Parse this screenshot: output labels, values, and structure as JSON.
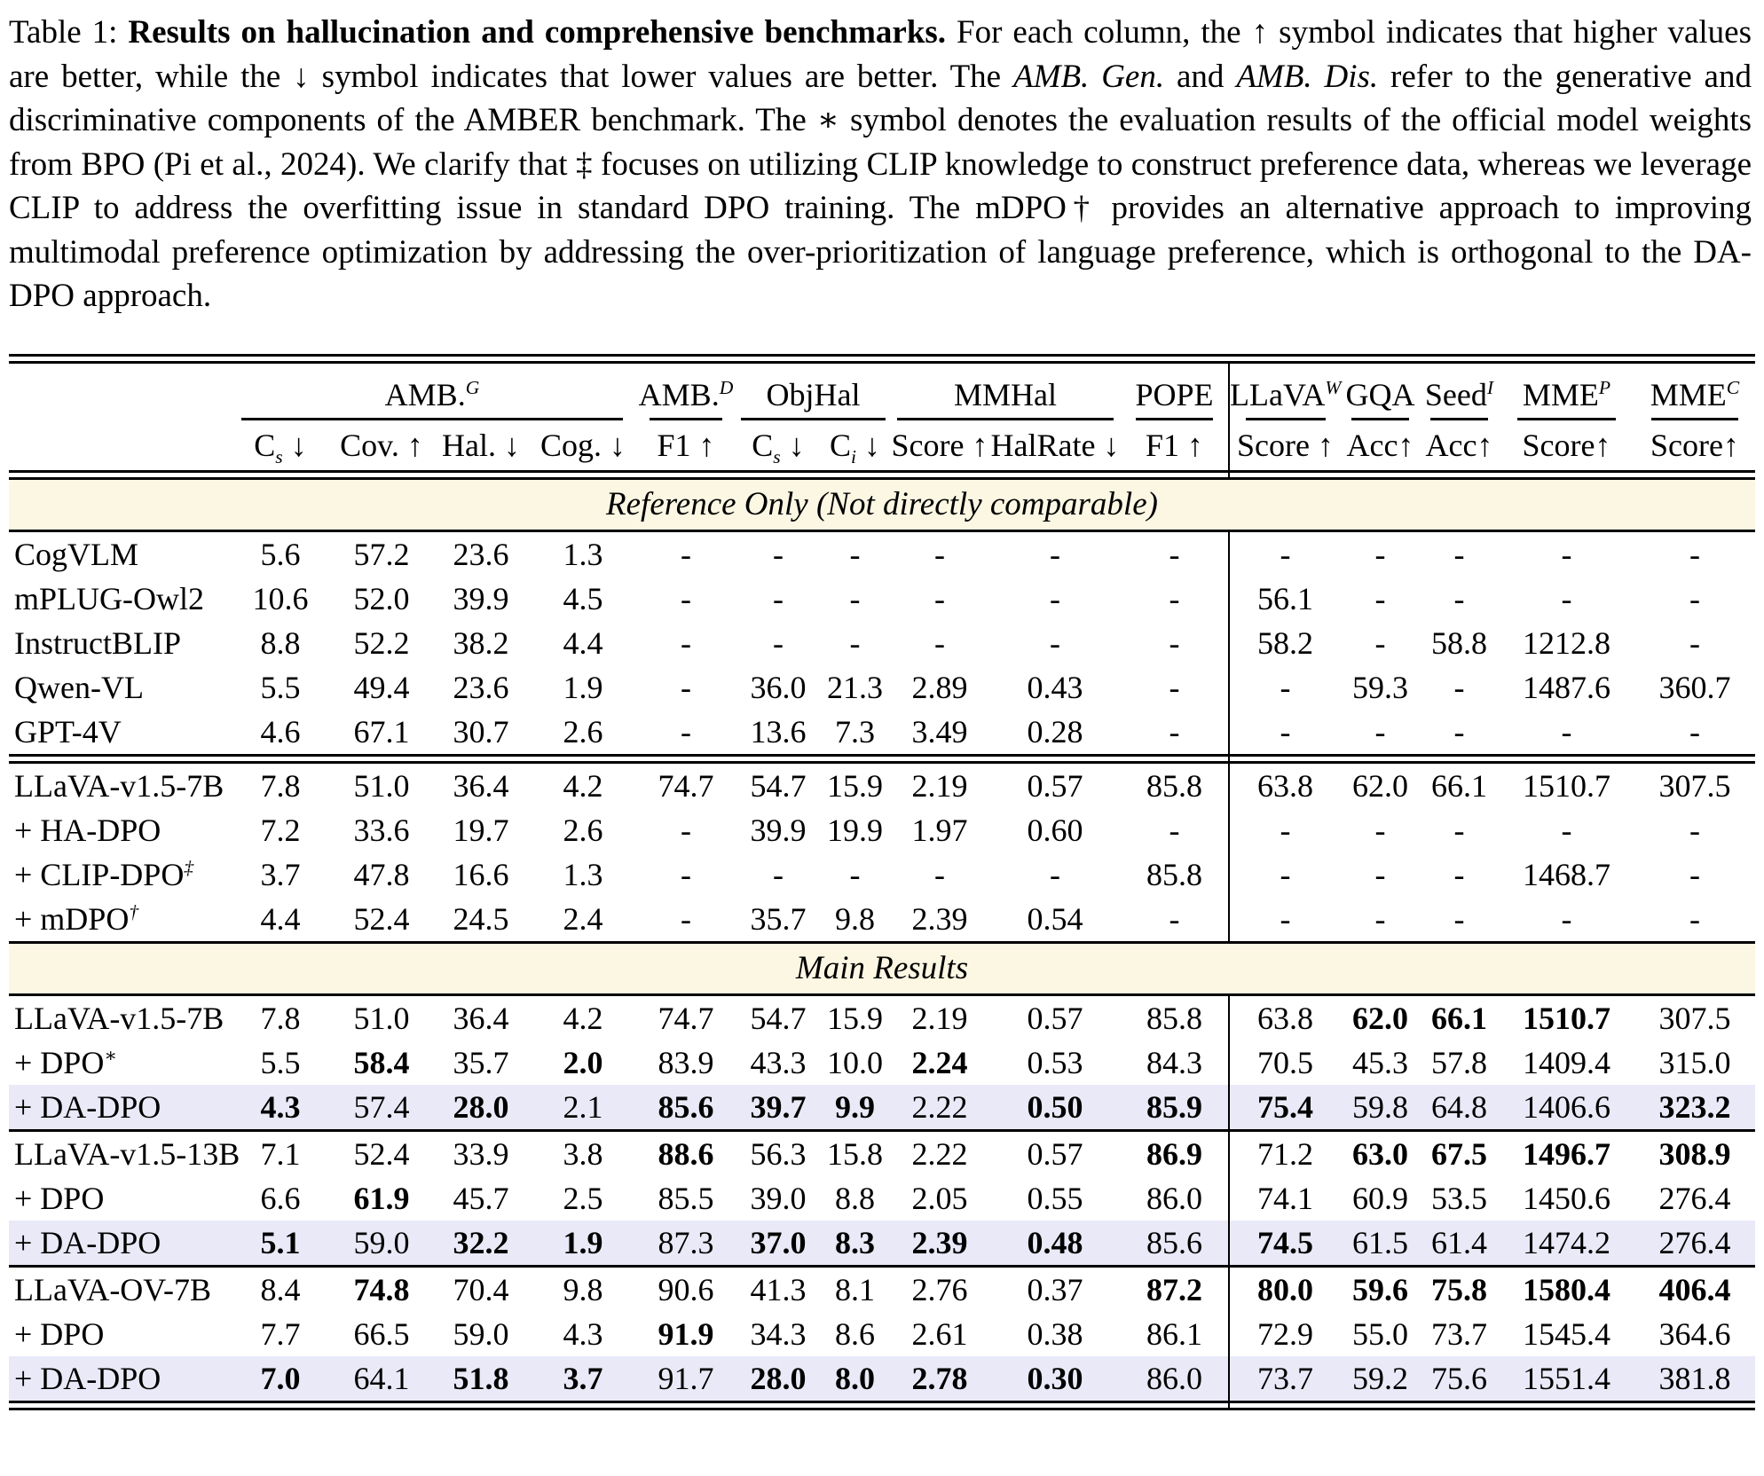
{
  "colors": {
    "banner_bg": "#FBF7E3",
    "highlight_bg": "#E9E9F8",
    "rule": "#000000"
  },
  "caption": {
    "prefix": "Table 1: ",
    "title_bold": "Results on hallucination and comprehensive benchmarks.",
    "seg1": " For each column, the ↑ symbol indicates that higher values are better, while the ↓ symbol indicates that lower values are better. The ",
    "amb_gen": "AMB. Gen.",
    "seg2": " and ",
    "amb_dis": "AMB. Dis.",
    "seg3": " refer to the generative and discriminative components of the AMBER benchmark. The ∗ symbol denotes the evaluation results of the official model weights from BPO (Pi et al., 2024). We clarify that ‡ focuses on utilizing CLIP knowledge to construct preference data, whereas we leverage CLIP to address the overfitting issue in standard DPO training. The mDPO† provides an alternative approach to improving multimodal preference optimization by addressing the over-prioritization of language preference, which is orthogonal to the DA-DPO approach."
  },
  "table": {
    "groups": [
      {
        "label": "",
        "span": 1
      },
      {
        "label": "AMB.^G",
        "span": 4
      },
      {
        "label": "AMB.^D",
        "span": 1
      },
      {
        "label": "ObjHal",
        "span": 2
      },
      {
        "label": "MMHal",
        "span": 2
      },
      {
        "label": "POPE",
        "span": 1
      },
      {
        "label": "LLaVA^W",
        "span": 1,
        "vline": true
      },
      {
        "label": "GQA",
        "span": 1
      },
      {
        "label": "Seed^I",
        "span": 1
      },
      {
        "label": "MME^P",
        "span": 1
      },
      {
        "label": "MME^C",
        "span": 1
      }
    ],
    "subheaders": [
      "",
      "C_s ↓",
      "Cov. ↑",
      "Hal. ↓",
      "Cog. ↓",
      "F1 ↑",
      "C_s ↓",
      "C_i ↓",
      "Score ↑",
      "HalRate ↓",
      "F1 ↑",
      "Score ↑",
      "Acc↑",
      "Acc↑",
      "Score↑",
      "Score↑"
    ],
    "sections": [
      {
        "rule_before": "none",
        "banner": "Reference Only (Not directly comparable)",
        "rows": [
          {
            "model": "CogVLM",
            "highlight": false,
            "values": [
              "5.6",
              "57.2",
              "23.6",
              "1.3",
              "-",
              "-",
              "-",
              "-",
              "-",
              "-",
              "-",
              "-",
              "-",
              "-",
              "-"
            ]
          },
          {
            "model": "mPLUG-Owl2",
            "highlight": false,
            "values": [
              "10.6",
              "52.0",
              "39.9",
              "4.5",
              "-",
              "-",
              "-",
              "-",
              "-",
              "-",
              "56.1",
              "-",
              "-",
              "-",
              "-"
            ]
          },
          {
            "model": "InstructBLIP",
            "highlight": false,
            "values": [
              "8.8",
              "52.2",
              "38.2",
              "4.4",
              "-",
              "-",
              "-",
              "-",
              "-",
              "-",
              "58.2",
              "-",
              "58.8",
              "1212.8",
              "-"
            ]
          },
          {
            "model": "Qwen-VL",
            "highlight": false,
            "values": [
              "5.5",
              "49.4",
              "23.6",
              "1.9",
              "-",
              "36.0",
              "21.3",
              "2.89",
              "0.43",
              "-",
              "-",
              "59.3",
              "-",
              "1487.6",
              "360.7"
            ]
          },
          {
            "model": "GPT-4V",
            "highlight": false,
            "values": [
              "4.6",
              "67.1",
              "30.7",
              "2.6",
              "-",
              "13.6",
              "7.3",
              "3.49",
              "0.28",
              "-",
              "-",
              "-",
              "-",
              "-",
              "-"
            ]
          }
        ]
      },
      {
        "rule_before": "double",
        "banner": null,
        "rows": [
          {
            "model": "LLaVA-v1.5-7B",
            "highlight": false,
            "values": [
              "7.8",
              "51.0",
              "36.4",
              "4.2",
              "74.7",
              "54.7",
              "15.9",
              "2.19",
              "0.57",
              "85.8",
              "63.8",
              "62.0",
              "66.1",
              "1510.7",
              "307.5"
            ]
          },
          {
            "model": "+ HA-DPO",
            "highlight": false,
            "values": [
              "7.2",
              "33.6",
              "19.7",
              "2.6",
              "-",
              "39.9",
              "19.9",
              "1.97",
              "0.60",
              "-",
              "-",
              "-",
              "-",
              "-",
              "-"
            ]
          },
          {
            "model": "+ CLIP-DPO^‡",
            "highlight": false,
            "values": [
              "3.7",
              "47.8",
              "16.6",
              "1.3",
              "-",
              "-",
              "-",
              "-",
              "-",
              "85.8",
              "-",
              "-",
              "-",
              "1468.7",
              "-"
            ]
          },
          {
            "model": "+ mDPO^†",
            "highlight": false,
            "values": [
              "4.4",
              "52.4",
              "24.5",
              "2.4",
              "-",
              "35.7",
              "9.8",
              "2.39",
              "0.54",
              "-",
              "-",
              "-",
              "-",
              "-",
              "-"
            ]
          }
        ]
      },
      {
        "rule_before": "single",
        "banner": "Main Results",
        "rows": [
          {
            "model": "LLaVA-v1.5-7B",
            "highlight": false,
            "values": [
              "7.8",
              "51.0",
              "36.4",
              "4.2",
              "74.7",
              "54.7",
              "15.9",
              "2.19",
              "0.57",
              "85.8",
              "63.8",
              "*62.0",
              "*66.1",
              "*1510.7",
              "307.5"
            ]
          },
          {
            "model": "+ DPO^∗",
            "highlight": false,
            "values": [
              "5.5",
              "*58.4",
              "35.7",
              "*2.0",
              "83.9",
              "43.3",
              "10.0",
              "*2.24",
              "0.53",
              "84.3",
              "70.5",
              "45.3",
              "57.8",
              "1409.4",
              "315.0"
            ]
          },
          {
            "model": "+ DA-DPO",
            "highlight": true,
            "values": [
              "*4.3",
              "57.4",
              "*28.0",
              "2.1",
              "*85.6",
              "*39.7",
              "*9.9",
              "2.22",
              "*0.50",
              "*85.9",
              "*75.4",
              "59.8",
              "64.8",
              "1406.6",
              "*323.2"
            ]
          }
        ]
      },
      {
        "rule_before": "single",
        "banner": null,
        "rows": [
          {
            "model": "LLaVA-v1.5-13B",
            "highlight": false,
            "values": [
              "7.1",
              "52.4",
              "33.9",
              "3.8",
              "*88.6",
              "56.3",
              "15.8",
              "2.22",
              "0.57",
              "*86.9",
              "71.2",
              "*63.0",
              "*67.5",
              "*1496.7",
              "*308.9"
            ]
          },
          {
            "model": "+ DPO",
            "highlight": false,
            "values": [
              "6.6",
              "*61.9",
              "45.7",
              "2.5",
              "85.5",
              "39.0",
              "8.8",
              "2.05",
              "0.55",
              "86.0",
              "74.1",
              "60.9",
              "53.5",
              "1450.6",
              "276.4"
            ]
          },
          {
            "model": "+ DA-DPO",
            "highlight": true,
            "values": [
              "*5.1",
              "59.0",
              "*32.2",
              "*1.9",
              "87.3",
              "*37.0",
              "*8.3",
              "*2.39",
              "*0.48",
              "85.6",
              "*74.5",
              "61.5",
              "61.4",
              "1474.2",
              "276.4"
            ]
          }
        ]
      },
      {
        "rule_before": "single",
        "banner": null,
        "rows": [
          {
            "model": "LLaVA-OV-7B",
            "highlight": false,
            "values": [
              "8.4",
              "*74.8",
              "70.4",
              "9.8",
              "90.6",
              "41.3",
              "8.1",
              "2.76",
              "0.37",
              "*87.2",
              "*80.0",
              "*59.6",
              "*75.8",
              "*1580.4",
              "*406.4"
            ]
          },
          {
            "model": "+ DPO",
            "highlight": false,
            "values": [
              "7.7",
              "66.5",
              "59.0",
              "4.3",
              "*91.9",
              "34.3",
              "8.6",
              "2.61",
              "0.38",
              "86.1",
              "72.9",
              "55.0",
              "73.7",
              "1545.4",
              "364.6"
            ]
          },
          {
            "model": "+ DA-DPO",
            "highlight": true,
            "values": [
              "*7.0",
              "64.1",
              "*51.8",
              "*3.7",
              "91.7",
              "*28.0",
              "*8.0",
              "*2.78",
              "*0.30",
              "86.0",
              "73.7",
              "59.2",
              "75.6",
              "1551.4",
              "381.8"
            ]
          }
        ]
      }
    ]
  }
}
